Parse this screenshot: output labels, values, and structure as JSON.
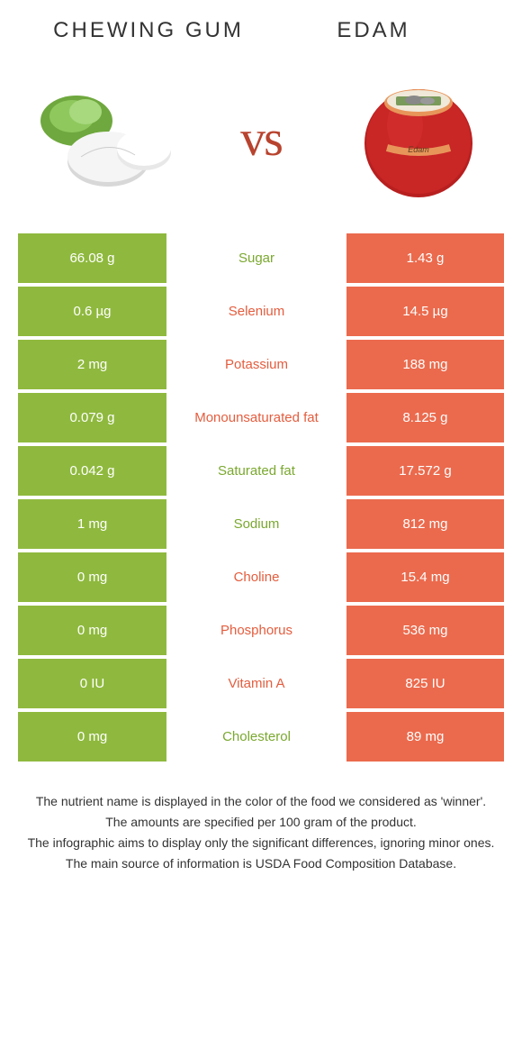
{
  "colors": {
    "green": "#8fb93e",
    "orange": "#eb6a4d",
    "mid_orange_text": "#e45d3e",
    "mid_green_text": "#7aa82f",
    "vs_text": "#b8432e",
    "title_text": "#333333",
    "footer_text": "#333333",
    "background": "#ffffff"
  },
  "typography": {
    "title_fontsize": 24,
    "title_letterspacing": 3,
    "vs_fontsize": 56,
    "cell_fontsize": 15,
    "footer_fontsize": 14
  },
  "header": {
    "left_title": "Chewing gum",
    "right_title": "Edam",
    "vs": "vs"
  },
  "images": {
    "left_alt": "chewing-gum-photo",
    "right_alt": "edam-cheese-photo"
  },
  "table": {
    "rows": [
      {
        "left": "66.08 g",
        "label": "Sugar",
        "right": "1.43 g",
        "winner": "left"
      },
      {
        "left": "0.6 µg",
        "label": "Selenium",
        "right": "14.5 µg",
        "winner": "right"
      },
      {
        "left": "2 mg",
        "label": "Potassium",
        "right": "188 mg",
        "winner": "right"
      },
      {
        "left": "0.079 g",
        "label": "Monounsaturated fat",
        "right": "8.125 g",
        "winner": "right"
      },
      {
        "left": "0.042 g",
        "label": "Saturated fat",
        "right": "17.572 g",
        "winner": "left"
      },
      {
        "left": "1 mg",
        "label": "Sodium",
        "right": "812 mg",
        "winner": "left"
      },
      {
        "left": "0 mg",
        "label": "Choline",
        "right": "15.4 mg",
        "winner": "right"
      },
      {
        "left": "0 mg",
        "label": "Phosphorus",
        "right": "536 mg",
        "winner": "right"
      },
      {
        "left": "0 IU",
        "label": "Vitamin A",
        "right": "825 IU",
        "winner": "right"
      },
      {
        "left": "0 mg",
        "label": "Cholesterol",
        "right": "89 mg",
        "winner": "left"
      }
    ]
  },
  "footer": {
    "line1": "The nutrient name is displayed in the color of the food we considered as 'winner'.",
    "line2": "The amounts are specified per 100 gram of the product.",
    "line3": "The infographic aims to display only the significant differences, ignoring minor ones.",
    "line4": "The main source of information is USDA Food Composition Database."
  }
}
